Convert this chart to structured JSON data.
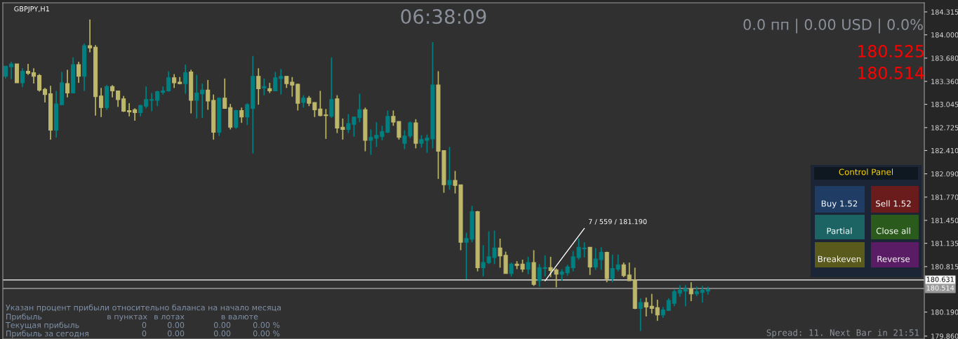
{
  "chart_data": {
    "type": "candlestick",
    "title": "GBPJPY,H1",
    "categories": [
      null,
      null,
      null,
      null,
      null,
      null,
      null,
      null,
      null,
      null,
      null,
      null,
      null,
      null,
      null,
      null,
      null,
      null,
      null,
      null,
      null,
      null,
      null,
      null,
      null,
      null,
      null,
      null,
      null,
      null,
      null,
      null,
      null,
      null,
      null,
      null,
      null,
      null,
      null,
      null,
      null,
      null,
      null,
      null,
      null,
      null,
      null,
      null,
      null,
      null,
      null,
      null,
      null,
      null,
      null,
      null,
      null,
      null,
      null,
      null,
      null,
      null,
      null,
      null,
      null,
      null,
      null,
      null,
      null,
      null,
      null,
      null,
      null,
      null,
      null,
      null,
      null,
      null,
      null,
      null,
      null,
      null,
      null,
      null,
      null,
      null,
      null,
      null,
      null,
      null,
      null,
      null,
      null,
      null,
      null,
      null,
      null,
      null,
      null,
      null,
      null,
      null,
      null,
      null,
      null,
      null,
      null,
      null,
      null,
      null,
      null,
      null,
      null,
      null,
      null,
      null,
      null,
      null,
      null,
      null,
      null,
      null,
      null,
      null,
      null,
      null,
      null,
      null,
      null,
      null,
      null,
      null,
      null,
      null,
      null,
      null,
      null,
      null,
      null,
      null,
      null,
      null,
      null,
      null,
      null,
      null,
      null,
      null,
      null,
      null,
      null,
      null,
      null,
      null,
      null,
      null,
      null,
      null,
      null,
      null,
      null,
      null,
      null,
      null
    ],
    "ohlc": [
      [
        183.43,
        183.57,
        183.4,
        183.57
      ],
      [
        183.56,
        183.63,
        183.39,
        183.6
      ],
      [
        183.6,
        183.6,
        183.34,
        183.34
      ],
      [
        183.34,
        183.54,
        183.28,
        183.5
      ],
      [
        183.5,
        183.6,
        183.45,
        183.47
      ],
      [
        183.48,
        183.54,
        183.33,
        183.43
      ],
      [
        183.44,
        183.46,
        183.22,
        183.24
      ],
      [
        183.25,
        183.27,
        183.07,
        183.18
      ],
      [
        183.19,
        183.3,
        182.56,
        182.69
      ],
      [
        182.69,
        183.23,
        182.59,
        183.05
      ],
      [
        183.04,
        183.49,
        183.04,
        183.34
      ],
      [
        183.33,
        183.52,
        183.14,
        183.2
      ],
      [
        183.2,
        183.69,
        183.2,
        183.59
      ],
      [
        183.59,
        183.63,
        183.34,
        183.43
      ],
      [
        183.43,
        183.88,
        183.23,
        183.85
      ],
      [
        183.85,
        184.21,
        183.76,
        183.82
      ],
      [
        183.83,
        183.86,
        182.89,
        183.15
      ],
      [
        183.16,
        183.27,
        182.87,
        183.0
      ],
      [
        183.0,
        183.31,
        182.97,
        183.29
      ],
      [
        183.29,
        183.31,
        183.14,
        183.23
      ],
      [
        183.23,
        183.23,
        183.01,
        183.11
      ],
      [
        183.12,
        183.16,
        182.94,
        182.95
      ],
      [
        182.96,
        183.06,
        182.88,
        182.94
      ],
      [
        182.97,
        182.99,
        182.82,
        182.93
      ],
      [
        182.93,
        183.04,
        182.88,
        183.03
      ],
      [
        183.02,
        183.29,
        182.99,
        183.11
      ],
      [
        183.1,
        183.2,
        182.95,
        183.11
      ],
      [
        183.1,
        183.23,
        183.02,
        183.22
      ],
      [
        183.21,
        183.29,
        183.18,
        183.23
      ],
      [
        183.23,
        183.5,
        183.22,
        183.41
      ],
      [
        183.41,
        183.46,
        183.27,
        183.34
      ],
      [
        183.35,
        183.42,
        183.32,
        183.33
      ],
      [
        183.33,
        183.59,
        183.19,
        183.48
      ],
      [
        183.49,
        183.52,
        182.92,
        183.1
      ],
      [
        183.1,
        183.45,
        182.85,
        183.2
      ],
      [
        183.19,
        183.33,
        182.86,
        183.24
      ],
      [
        183.24,
        183.38,
        182.97,
        183.09
      ],
      [
        183.1,
        183.18,
        182.56,
        182.66
      ],
      [
        182.66,
        183.14,
        182.61,
        183.13
      ],
      [
        183.13,
        183.4,
        182.99,
        182.99
      ],
      [
        183.0,
        183.05,
        182.7,
        182.73
      ],
      [
        182.73,
        182.97,
        182.71,
        182.96
      ],
      [
        182.96,
        183.0,
        182.79,
        182.87
      ],
      [
        182.87,
        183.06,
        182.76,
        183.04
      ],
      [
        182.99,
        183.71,
        182.37,
        183.43
      ],
      [
        183.43,
        183.54,
        183.04,
        183.26
      ],
      [
        183.27,
        183.4,
        183.17,
        183.29
      ],
      [
        183.26,
        183.34,
        183.2,
        183.23
      ],
      [
        183.23,
        183.49,
        183.23,
        183.41
      ],
      [
        183.4,
        183.53,
        183.18,
        183.43
      ],
      [
        183.43,
        183.43,
        183.27,
        183.33
      ],
      [
        183.35,
        183.42,
        183.15,
        183.31
      ],
      [
        183.32,
        183.33,
        182.96,
        183.06
      ],
      [
        183.07,
        183.17,
        183.0,
        183.13
      ],
      [
        183.13,
        183.16,
        183.02,
        183.06
      ],
      [
        183.07,
        183.07,
        182.87,
        182.97
      ],
      [
        182.98,
        183.23,
        182.88,
        182.89
      ],
      [
        182.9,
        182.98,
        182.57,
        182.89
      ],
      [
        182.88,
        183.69,
        182.86,
        183.11
      ],
      [
        183.12,
        183.17,
        182.65,
        182.72
      ],
      [
        182.73,
        182.85,
        182.56,
        182.7
      ],
      [
        182.7,
        182.91,
        182.65,
        182.78
      ],
      [
        182.77,
        182.87,
        182.6,
        182.87
      ],
      [
        182.86,
        183.19,
        182.8,
        182.97
      ],
      [
        182.97,
        183.0,
        182.4,
        182.55
      ],
      [
        182.55,
        182.7,
        182.35,
        182.59
      ],
      [
        182.58,
        182.8,
        182.46,
        182.62
      ],
      [
        182.6,
        182.75,
        182.55,
        182.67
      ],
      [
        182.66,
        182.96,
        182.65,
        182.88
      ],
      [
        182.88,
        182.96,
        182.75,
        182.8
      ],
      [
        182.81,
        182.81,
        182.56,
        182.59
      ],
      [
        182.51,
        182.69,
        182.43,
        182.61
      ],
      [
        182.61,
        182.81,
        182.58,
        182.79
      ],
      [
        182.79,
        182.84,
        182.44,
        182.51
      ],
      [
        182.51,
        182.62,
        182.45,
        182.56
      ],
      [
        182.55,
        182.63,
        182.38,
        182.58
      ],
      [
        182.57,
        183.9,
        182.44,
        183.31
      ],
      [
        183.31,
        183.5,
        182.02,
        182.4
      ],
      [
        182.41,
        182.41,
        181.83,
        181.94
      ],
      [
        181.94,
        182.46,
        181.87,
        182.0
      ],
      [
        182.0,
        182.13,
        181.82,
        181.93
      ],
      [
        181.94,
        181.94,
        181.04,
        181.15
      ],
      [
        181.15,
        181.28,
        180.64,
        181.2
      ],
      [
        181.19,
        181.65,
        181.15,
        181.57
      ],
      [
        181.57,
        181.58,
        180.75,
        180.8
      ],
      [
        180.8,
        181.11,
        180.68,
        180.87
      ],
      [
        180.87,
        181.3,
        180.85,
        180.95
      ],
      [
        180.94,
        181.31,
        180.85,
        181.07
      ],
      [
        181.07,
        181.2,
        180.8,
        180.96
      ],
      [
        180.97,
        181.02,
        180.72,
        180.72
      ],
      [
        180.72,
        180.87,
        180.68,
        180.85
      ],
      [
        180.85,
        180.89,
        180.78,
        180.83
      ],
      [
        180.85,
        180.91,
        180.74,
        180.78
      ],
      [
        180.78,
        180.95,
        180.71,
        180.87
      ],
      [
        180.87,
        181.04,
        180.55,
        180.57
      ],
      [
        180.62,
        180.85,
        180.54,
        180.8
      ],
      [
        180.79,
        180.97,
        180.68,
        180.8
      ],
      [
        180.8,
        180.95,
        180.67,
        180.76
      ],
      [
        180.77,
        180.79,
        180.53,
        180.71
      ],
      [
        180.71,
        180.78,
        180.62,
        180.74
      ],
      [
        180.73,
        180.84,
        180.69,
        180.81
      ],
      [
        180.8,
        181.03,
        180.75,
        180.95
      ],
      [
        180.94,
        181.2,
        180.91,
        181.08
      ],
      [
        181.06,
        181.15,
        180.94,
        181.07
      ],
      [
        181.08,
        181.08,
        180.7,
        180.81
      ],
      [
        180.81,
        181.07,
        180.77,
        180.92
      ],
      [
        180.91,
        181.08,
        180.77,
        181.01
      ],
      [
        181.01,
        181.02,
        180.6,
        180.65
      ],
      [
        180.65,
        180.98,
        180.6,
        180.79
      ],
      [
        180.78,
        180.98,
        180.75,
        180.84
      ],
      [
        180.84,
        180.87,
        180.67,
        180.69
      ],
      [
        180.7,
        180.87,
        180.62,
        180.62
      ],
      [
        180.63,
        180.8,
        180.23,
        180.24
      ],
      [
        180.24,
        180.38,
        179.93,
        180.32
      ],
      [
        180.32,
        180.39,
        180.13,
        180.26
      ],
      [
        180.27,
        180.44,
        180.17,
        180.24
      ],
      [
        180.25,
        180.36,
        180.07,
        180.15
      ],
      [
        180.15,
        180.26,
        180.11,
        180.22
      ],
      [
        180.21,
        180.38,
        180.21,
        180.35
      ],
      [
        180.31,
        180.5,
        180.27,
        180.47
      ],
      [
        180.45,
        180.56,
        180.4,
        180.49
      ],
      [
        180.48,
        180.56,
        180.27,
        180.51
      ],
      [
        180.51,
        180.6,
        180.34,
        180.44
      ],
      [
        180.44,
        180.54,
        180.41,
        180.47
      ],
      [
        180.46,
        180.55,
        180.32,
        180.49
      ],
      [
        180.48,
        180.54,
        180.43,
        180.5
      ],
      null,
      null,
      null,
      null,
      null,
      null,
      null,
      null,
      null,
      null,
      null,
      null,
      null,
      null,
      null,
      null,
      null,
      null,
      null,
      null,
      null,
      null,
      null,
      null,
      null,
      null,
      null,
      null,
      null,
      null,
      null,
      null,
      null,
      null,
      null,
      null,
      null,
      null
    ],
    "colors": [
      "#008080",
      "#008080",
      "#bdb76b",
      "#008080",
      "#bdb76b",
      "#bdb76b",
      "#bdb76b",
      "#bdb76b",
      "#bdb76b",
      "#008080",
      "#008080",
      "#bdb76b",
      "#008080",
      "#bdb76b",
      "#008080",
      "#bdb76b",
      "#bdb76b",
      "#bdb76b",
      "#008080",
      "#bdb76b",
      "#bdb76b",
      "#bdb76b",
      "#bdb76b",
      "#bdb76b",
      "#008080",
      "#008080",
      "#008080",
      "#008080",
      "#008080",
      "#008080",
      "#bdb76b",
      "#bdb76b",
      "#008080",
      "#bdb76b",
      "#008080",
      "#008080",
      "#bdb76b",
      "#bdb76b",
      "#008080",
      "#bdb76b",
      "#bdb76b",
      "#008080",
      "#bdb76b",
      "#008080",
      "#008080",
      "#bdb76b",
      "#008080",
      "#bdb76b",
      "#008080",
      "#008080",
      "#bdb76b",
      "#bdb76b",
      "#bdb76b",
      "#008080",
      "#bdb76b",
      "#bdb76b",
      "#bdb76b",
      "#bdb76b",
      "#008080",
      "#bdb76b",
      "#bdb76b",
      "#008080",
      "#008080",
      "#008080",
      "#bdb76b",
      "#008080",
      "#008080",
      "#008080",
      "#008080",
      "#bdb76b",
      "#bdb76b",
      "#008080",
      "#008080",
      "#bdb76b",
      "#008080",
      "#008080",
      "#008080",
      "#bdb76b",
      "#bdb76b",
      "#008080",
      "#bdb76b",
      "#bdb76b",
      "#008080",
      "#008080",
      "#bdb76b",
      "#008080",
      "#008080",
      "#008080",
      "#bdb76b",
      "#bdb76b",
      "#008080",
      "#bdb76b",
      "#bdb76b",
      "#008080",
      "#bdb76b",
      "#008080",
      "#008080",
      "#bdb76b",
      "#bdb76b",
      "#008080",
      "#008080",
      "#008080",
      "#008080",
      "#008080",
      "#bdb76b",
      "#008080",
      "#008080",
      "#bdb76b",
      "#008080",
      "#008080",
      "#bdb76b",
      "#bdb76b",
      "#bdb76b",
      "#008080",
      "#bdb76b",
      "#bdb76b",
      "#bdb76b",
      "#008080",
      "#008080",
      "#008080",
      "#008080",
      "#008080",
      "#bdb76b",
      "#008080",
      "#008080",
      "#008080",
      null,
      null,
      null,
      null,
      null,
      null,
      null,
      null,
      null,
      null,
      null,
      null,
      null,
      null,
      null,
      null,
      null,
      null,
      null,
      null,
      null,
      null,
      null,
      null,
      null,
      null,
      null,
      null,
      null,
      null,
      null,
      null,
      null,
      null,
      null,
      null,
      null,
      null
    ],
    "series": [
      {
        "type": "line",
        "color": "#ffffff",
        "values": [
          null,
          null,
          null,
          null,
          null,
          null,
          null,
          null,
          null,
          null,
          null,
          null,
          null,
          null,
          null,
          null,
          null,
          null,
          null,
          null,
          null,
          null,
          null,
          null,
          null,
          null,
          null,
          null,
          null,
          null,
          null,
          null,
          null,
          null,
          null,
          null,
          null,
          null,
          null,
          null,
          null,
          null,
          null,
          null,
          null,
          null,
          null,
          null,
          null,
          null,
          null,
          null,
          null,
          null,
          null,
          null,
          null,
          null,
          null,
          null,
          null,
          null,
          null,
          null,
          null,
          null,
          null,
          null,
          null,
          null,
          null,
          null,
          null,
          null,
          null,
          null,
          null,
          null,
          null,
          null,
          null,
          null,
          null,
          null,
          null,
          null,
          null,
          null,
          null,
          null,
          null,
          null,
          null,
          null,
          null,
          null,
          180.62,
          null,
          null,
          null,
          null,
          null,
          null,
          181.34,
          null,
          null,
          null,
          null,
          null,
          null,
          null,
          null,
          null,
          null,
          null,
          null,
          null,
          null,
          null,
          null,
          null,
          null,
          null,
          null,
          null,
          null,
          null,
          null,
          null,
          null,
          null,
          null,
          null,
          null,
          null,
          null,
          null,
          null,
          null,
          null,
          null,
          null,
          null,
          null,
          null,
          null,
          null,
          null,
          null,
          null,
          null,
          null,
          null,
          null,
          null,
          null,
          null,
          null,
          null,
          null,
          null,
          null,
          null,
          null
        ]
      }
    ],
    "ylim": [
      179.82,
      184.44
    ],
    "yticks": [
      184.315,
      {
        "value": 184.0,
        "label": "184.000"
      },
      {
        "value": 183.68,
        "label": "183.680"
      },
      {
        "value": 183.36,
        "label": "183.360"
      },
      183.045,
      182.725,
      {
        "value": 182.41,
        "label": "182.410"
      },
      {
        "value": 182.09,
        "label": "182.090"
      },
      {
        "value": 181.77,
        "label": "181.770"
      },
      {
        "value": 181.45,
        "label": "181.450"
      },
      181.135,
      180.815,
      {
        "value": 180.19,
        "label": "180.190"
      },
      {
        "value": 179.86,
        "label": "179.860"
      }
    ],
    "ref_lines": [
      {
        "axis": "y",
        "value": 180.631,
        "label": "180.631",
        "color": "#ffffff"
      },
      {
        "axis": "y",
        "value": 180.514,
        "label": "180.514",
        "color": "#9a9a9a"
      }
    ],
    "tick_labels": "y",
    "grid": false,
    "annotations": [
      "0.0 пп | 0.00 USD | 0.0%",
      "180.525",
      "180.514",
      "06:38:09",
      "7 / 559 / 181.190",
      "Control Panel",
      "Buy 1.52",
      "Sell 1.52",
      "Partial",
      "Close all",
      "Breakeven",
      "Reverse",
      "Указан процент прибыли относительно баланса на начало месяца",
      "Прибыль",
      "в пунктах",
      "в лотах",
      "в валюте",
      "Текущая прибыль",
      "0",
      "0.00",
      "0.00",
      "0.00 %",
      "Прибыль за сегодня",
      "0",
      "0.00",
      "0.00",
      "0.00 %",
      "Spread: 11. Next Bar in 21:51"
    ]
  }
}
